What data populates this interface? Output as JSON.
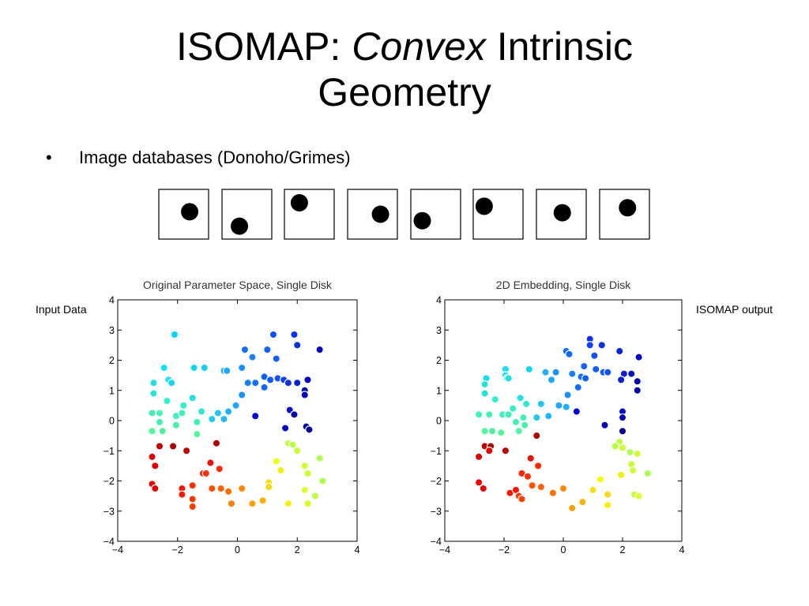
{
  "title": {
    "line1_pre": "ISOMAP: ",
    "line1_em": "Convex",
    "line1_post": " Intrinsic",
    "line2": "Geometry"
  },
  "bullet": {
    "marker": "•",
    "text": "Image databases (Donoho/Grimes)"
  },
  "thumbnails": [
    {
      "disk_x": 0.62,
      "disk_y": 0.45
    },
    {
      "disk_x": 0.35,
      "disk_y": 0.74
    },
    {
      "disk_x": 0.3,
      "disk_y": 0.27
    },
    {
      "disk_x": 0.66,
      "disk_y": 0.5
    },
    {
      "disk_x": 0.23,
      "disk_y": 0.63
    },
    {
      "disk_x": 0.22,
      "disk_y": 0.34
    },
    {
      "disk_x": 0.52,
      "disk_y": 0.47
    },
    {
      "disk_x": 0.56,
      "disk_y": 0.37
    }
  ],
  "labels": {
    "input": "Input Data",
    "output": "ISOMAP output"
  },
  "chart_data": [
    {
      "type": "scatter",
      "title": "Original Parameter Space, Single Disk",
      "xlim": [
        -4,
        4
      ],
      "ylim": [
        -4,
        4
      ],
      "xticks": [
        "−4",
        "−2",
        "0",
        "2",
        "4"
      ],
      "yticks": [
        "−4",
        "−3",
        "−2",
        "−1",
        "0",
        "1",
        "2",
        "3",
        "4"
      ],
      "grid": false,
      "points": [
        {
          "x": -2.1,
          "y": 2.85,
          "color": "#00d8ff"
        },
        {
          "x": 1.2,
          "y": 2.85,
          "color": "#1050ff"
        },
        {
          "x": 1.9,
          "y": 2.85,
          "color": "#0a30ff"
        },
        {
          "x": 2.0,
          "y": 2.5,
          "color": "#0a30e0"
        },
        {
          "x": 2.75,
          "y": 2.35,
          "color": "#0000c8"
        },
        {
          "x": 0.25,
          "y": 2.35,
          "color": "#1070ff"
        },
        {
          "x": 1.0,
          "y": 2.35,
          "color": "#1060ff"
        },
        {
          "x": 0.5,
          "y": 2.1,
          "color": "#1880ff"
        },
        {
          "x": 1.3,
          "y": 2.05,
          "color": "#1060ff"
        },
        {
          "x": -2.45,
          "y": 1.75,
          "color": "#10e0f0"
        },
        {
          "x": -1.45,
          "y": 1.75,
          "color": "#10d8f0"
        },
        {
          "x": -1.1,
          "y": 1.75,
          "color": "#10d0f0"
        },
        {
          "x": -0.45,
          "y": 1.65,
          "color": "#20b0ff"
        },
        {
          "x": -0.35,
          "y": 1.65,
          "color": "#20a8ff"
        },
        {
          "x": 0.15,
          "y": 1.75,
          "color": "#1890ff"
        },
        {
          "x": -2.3,
          "y": 1.35,
          "color": "#10e0f0"
        },
        {
          "x": -2.2,
          "y": 1.25,
          "color": "#10d8f0"
        },
        {
          "x": -2.8,
          "y": 1.25,
          "color": "#20e0e0"
        },
        {
          "x": 0.9,
          "y": 1.45,
          "color": "#1060ff"
        },
        {
          "x": 1.1,
          "y": 1.35,
          "color": "#1058ff"
        },
        {
          "x": 1.35,
          "y": 1.4,
          "color": "#1050ff"
        },
        {
          "x": 1.55,
          "y": 1.35,
          "color": "#1040ff"
        },
        {
          "x": 1.7,
          "y": 1.25,
          "color": "#0a30e0"
        },
        {
          "x": 2.0,
          "y": 1.25,
          "color": "#0a20d0"
        },
        {
          "x": 2.35,
          "y": 1.35,
          "color": "#0000c0"
        },
        {
          "x": 0.6,
          "y": 1.25,
          "color": "#1070ff"
        },
        {
          "x": 0.9,
          "y": 1.1,
          "color": "#1068ff"
        },
        {
          "x": 0.35,
          "y": 1.25,
          "color": "#1080ff"
        },
        {
          "x": 2.25,
          "y": 1.0,
          "color": "#0000a8"
        },
        {
          "x": 2.25,
          "y": 0.85,
          "color": "#0000b8"
        },
        {
          "x": 0.15,
          "y": 0.85,
          "color": "#1890ff"
        },
        {
          "x": -2.8,
          "y": 0.9,
          "color": "#20e8d8"
        },
        {
          "x": -2.35,
          "y": 0.65,
          "color": "#30f0d0"
        },
        {
          "x": -1.5,
          "y": 0.75,
          "color": "#20e0e0"
        },
        {
          "x": -1.8,
          "y": 0.5,
          "color": "#30f0c8"
        },
        {
          "x": -0.05,
          "y": 0.5,
          "color": "#20a8ff"
        },
        {
          "x": -0.3,
          "y": 0.3,
          "color": "#20b0ff"
        },
        {
          "x": -1.2,
          "y": 0.3,
          "color": "#30e8d0"
        },
        {
          "x": -0.65,
          "y": 0.25,
          "color": "#20c8f0"
        },
        {
          "x": -2.85,
          "y": 0.25,
          "color": "#40f0b0"
        },
        {
          "x": -2.6,
          "y": 0.25,
          "color": "#40f8b0"
        },
        {
          "x": -2.05,
          "y": 0.15,
          "color": "#40f0c0"
        },
        {
          "x": -1.85,
          "y": 0.25,
          "color": "#40f0b8"
        },
        {
          "x": -0.85,
          "y": 0.05,
          "color": "#20c8f0"
        },
        {
          "x": -0.45,
          "y": 0.05,
          "color": "#20b8ff"
        },
        {
          "x": 0.6,
          "y": 0.15,
          "color": "#0000e0"
        },
        {
          "x": 1.75,
          "y": 0.35,
          "color": "#0a10c8"
        },
        {
          "x": 1.9,
          "y": 0.2,
          "color": "#0000b0"
        },
        {
          "x": 1.6,
          "y": -0.25,
          "color": "#0000c0"
        },
        {
          "x": 2.3,
          "y": -0.2,
          "color": "#0000a0"
        },
        {
          "x": 2.4,
          "y": -0.3,
          "color": "#000090"
        },
        {
          "x": -2.6,
          "y": -0.05,
          "color": "#40f0b0"
        },
        {
          "x": -2.05,
          "y": -0.15,
          "color": "#48f0a8"
        },
        {
          "x": -2.85,
          "y": -0.35,
          "color": "#50f8a0"
        },
        {
          "x": -2.5,
          "y": -0.35,
          "color": "#50f0a0"
        },
        {
          "x": -1.35,
          "y": -0.05,
          "color": "#40f0b8"
        },
        {
          "x": -1.35,
          "y": -0.45,
          "color": "#50f8a0"
        },
        {
          "x": 1.7,
          "y": -0.75,
          "color": "#c0ff40"
        },
        {
          "x": 1.85,
          "y": -0.8,
          "color": "#b8ff40"
        },
        {
          "x": 2.0,
          "y": -1.0,
          "color": "#c8ff38"
        },
        {
          "x": 2.75,
          "y": -1.25,
          "color": "#b0ff50"
        },
        {
          "x": 1.3,
          "y": -1.35,
          "color": "#f0ff10"
        },
        {
          "x": 2.25,
          "y": -1.5,
          "color": "#d0ff30"
        },
        {
          "x": 1.45,
          "y": -1.65,
          "color": "#f0f010"
        },
        {
          "x": 2.35,
          "y": -1.75,
          "color": "#c8ff30"
        },
        {
          "x": 1.05,
          "y": -2.05,
          "color": "#f8e010"
        },
        {
          "x": 1.05,
          "y": -2.2,
          "color": "#f8d810"
        },
        {
          "x": 2.85,
          "y": -2.0,
          "color": "#b0ff50"
        },
        {
          "x": 2.25,
          "y": -2.3,
          "color": "#d8ff30"
        },
        {
          "x": 2.6,
          "y": -2.5,
          "color": "#c0ff40"
        },
        {
          "x": 1.7,
          "y": -2.75,
          "color": "#f8f008"
        },
        {
          "x": 2.35,
          "y": -2.75,
          "color": "#d8ff20"
        },
        {
          "x": 0.5,
          "y": -2.75,
          "color": "#ffa000"
        },
        {
          "x": 0.85,
          "y": -2.65,
          "color": "#ffb000"
        },
        {
          "x": -2.6,
          "y": -0.85,
          "color": "#c00000"
        },
        {
          "x": -2.15,
          "y": -0.85,
          "color": "#b00000"
        },
        {
          "x": -1.7,
          "y": -1.0,
          "color": "#c00000"
        },
        {
          "x": -0.7,
          "y": -0.75,
          "color": "#b00000"
        },
        {
          "x": -2.85,
          "y": -1.2,
          "color": "#e00000"
        },
        {
          "x": -2.75,
          "y": -1.5,
          "color": "#e80000"
        },
        {
          "x": -0.9,
          "y": -1.4,
          "color": "#f01000"
        },
        {
          "x": -0.6,
          "y": -1.6,
          "color": "#ff2800"
        },
        {
          "x": -1.15,
          "y": -1.75,
          "color": "#ff2000"
        },
        {
          "x": -1.05,
          "y": -1.75,
          "color": "#ff3000"
        },
        {
          "x": -2.85,
          "y": -2.1,
          "color": "#f00000"
        },
        {
          "x": -2.75,
          "y": -2.25,
          "color": "#e80000"
        },
        {
          "x": -1.85,
          "y": -2.25,
          "color": "#ff1000"
        },
        {
          "x": -1.85,
          "y": -2.45,
          "color": "#ff1800"
        },
        {
          "x": -0.85,
          "y": -2.25,
          "color": "#ff5000"
        },
        {
          "x": -0.55,
          "y": -2.25,
          "color": "#ff6000"
        },
        {
          "x": -0.3,
          "y": -2.35,
          "color": "#ff7000"
        },
        {
          "x": 0.15,
          "y": -2.25,
          "color": "#ff8800"
        },
        {
          "x": -1.5,
          "y": -2.6,
          "color": "#ff3800"
        },
        {
          "x": -1.5,
          "y": -2.85,
          "color": "#ff4000"
        },
        {
          "x": -1.5,
          "y": -2.15,
          "color": "#ff3000"
        },
        {
          "x": -0.2,
          "y": -2.75,
          "color": "#ff8000"
        }
      ]
    },
    {
      "type": "scatter",
      "title": "2D Embedding, Single Disk",
      "xlim": [
        -4,
        4
      ],
      "ylim": [
        -4,
        4
      ],
      "xticks": [
        "−4",
        "−2",
        "0",
        "2",
        "4"
      ],
      "yticks": [
        "−4",
        "−3",
        "−2",
        "−1",
        "0",
        "1",
        "2",
        "3",
        "4"
      ],
      "grid": false,
      "points": [
        {
          "x": 0.9,
          "y": 2.7,
          "color": "#0a30ff"
        },
        {
          "x": 0.9,
          "y": 2.5,
          "color": "#1040ff"
        },
        {
          "x": 1.3,
          "y": 2.5,
          "color": "#0a30e8"
        },
        {
          "x": 1.9,
          "y": 2.3,
          "color": "#0a20e0"
        },
        {
          "x": 0.1,
          "y": 2.3,
          "color": "#1070ff"
        },
        {
          "x": 0.2,
          "y": 2.2,
          "color": "#1068ff"
        },
        {
          "x": 1.05,
          "y": 2.15,
          "color": "#1050ff"
        },
        {
          "x": 2.55,
          "y": 2.1,
          "color": "#0000c8"
        },
        {
          "x": 0.7,
          "y": 1.8,
          "color": "#1860ff"
        },
        {
          "x": 1.1,
          "y": 1.7,
          "color": "#1060ff"
        },
        {
          "x": 1.35,
          "y": 1.6,
          "color": "#1058ff"
        },
        {
          "x": 1.5,
          "y": 1.6,
          "color": "#1050ff"
        },
        {
          "x": 2.05,
          "y": 1.55,
          "color": "#0a20d0"
        },
        {
          "x": 2.3,
          "y": 1.55,
          "color": "#0010c0"
        },
        {
          "x": -1.95,
          "y": 1.7,
          "color": "#10e0f0"
        },
        {
          "x": -1.15,
          "y": 1.7,
          "color": "#10d8f0"
        },
        {
          "x": -1.95,
          "y": 1.5,
          "color": "#10e0f0"
        },
        {
          "x": -0.6,
          "y": 1.6,
          "color": "#20b0ff"
        },
        {
          "x": -0.25,
          "y": 1.6,
          "color": "#1890ff"
        },
        {
          "x": 0.3,
          "y": 1.55,
          "color": "#1880ff"
        },
        {
          "x": -2.6,
          "y": 1.4,
          "color": "#10e0f0"
        },
        {
          "x": -1.9,
          "y": 1.4,
          "color": "#10d8f0"
        },
        {
          "x": -1.85,
          "y": 1.4,
          "color": "#20e0e0"
        },
        {
          "x": -0.4,
          "y": 1.35,
          "color": "#20a8ff"
        },
        {
          "x": 0.6,
          "y": 1.45,
          "color": "#1070ff"
        },
        {
          "x": 0.75,
          "y": 1.4,
          "color": "#1060ff"
        },
        {
          "x": 1.95,
          "y": 1.35,
          "color": "#0a20d0"
        },
        {
          "x": 2.5,
          "y": 1.3,
          "color": "#0000b0"
        },
        {
          "x": -2.65,
          "y": 1.2,
          "color": "#20e8d8"
        },
        {
          "x": 0.5,
          "y": 1.1,
          "color": "#1070ff"
        },
        {
          "x": 2.5,
          "y": 1.0,
          "color": "#0000a8"
        },
        {
          "x": -2.65,
          "y": 0.9,
          "color": "#20e8d8"
        },
        {
          "x": -1.45,
          "y": 0.75,
          "color": "#20e0e0"
        },
        {
          "x": -2.3,
          "y": 0.7,
          "color": "#30f0d0"
        },
        {
          "x": 0.15,
          "y": 0.85,
          "color": "#1890ff"
        },
        {
          "x": -1.25,
          "y": 0.55,
          "color": "#30e8d0"
        },
        {
          "x": -0.75,
          "y": 0.55,
          "color": "#20c8f0"
        },
        {
          "x": -1.7,
          "y": 0.4,
          "color": "#30f0c8"
        },
        {
          "x": -0.15,
          "y": 0.5,
          "color": "#20a8ff"
        },
        {
          "x": 0.1,
          "y": 0.45,
          "color": "#20b0ff"
        },
        {
          "x": -2.85,
          "y": 0.2,
          "color": "#40f0b0"
        },
        {
          "x": -2.5,
          "y": 0.2,
          "color": "#40f8b0"
        },
        {
          "x": -2.05,
          "y": 0.2,
          "color": "#40f0c0"
        },
        {
          "x": -1.85,
          "y": 0.2,
          "color": "#40f0b8"
        },
        {
          "x": -1.35,
          "y": 0.1,
          "color": "#40f0b8"
        },
        {
          "x": -0.9,
          "y": 0.1,
          "color": "#20c8f0"
        },
        {
          "x": -0.5,
          "y": 0.15,
          "color": "#20b8ff"
        },
        {
          "x": 0.45,
          "y": 0.3,
          "color": "#0000e0"
        },
        {
          "x": 2.0,
          "y": 0.3,
          "color": "#0a10c8"
        },
        {
          "x": 2.0,
          "y": 0.1,
          "color": "#0000b0"
        },
        {
          "x": -1.6,
          "y": -0.05,
          "color": "#40f0b0"
        },
        {
          "x": -1.3,
          "y": -0.15,
          "color": "#48f0a8"
        },
        {
          "x": -2.65,
          "y": -0.35,
          "color": "#50f8a0"
        },
        {
          "x": -2.4,
          "y": -0.35,
          "color": "#50f0a0"
        },
        {
          "x": -2.1,
          "y": -0.4,
          "color": "#50f8a0"
        },
        {
          "x": -1.5,
          "y": -0.35,
          "color": "#50f8a0"
        },
        {
          "x": 1.4,
          "y": -0.15,
          "color": "#0000c0"
        },
        {
          "x": 2.0,
          "y": -0.35,
          "color": "#000090"
        },
        {
          "x": -0.9,
          "y": -0.5,
          "color": "#b00000"
        },
        {
          "x": 1.9,
          "y": -0.7,
          "color": "#c0ff40"
        },
        {
          "x": 1.75,
          "y": -0.85,
          "color": "#b8ff40"
        },
        {
          "x": 2.0,
          "y": -0.9,
          "color": "#c8ff38"
        },
        {
          "x": 2.25,
          "y": -1.05,
          "color": "#b0ff50"
        },
        {
          "x": 2.5,
          "y": -1.1,
          "color": "#d0ff30"
        },
        {
          "x": -2.65,
          "y": -0.85,
          "color": "#c00000"
        },
        {
          "x": -2.45,
          "y": -0.85,
          "color": "#b00000"
        },
        {
          "x": -2.85,
          "y": -1.2,
          "color": "#e00000"
        },
        {
          "x": -2.5,
          "y": -1.0,
          "color": "#e80000"
        },
        {
          "x": -1.95,
          "y": -1.0,
          "color": "#c00000"
        },
        {
          "x": -1.1,
          "y": -1.25,
          "color": "#f01000"
        },
        {
          "x": -0.85,
          "y": -1.5,
          "color": "#ff2800"
        },
        {
          "x": 2.3,
          "y": -1.45,
          "color": "#c8ff30"
        },
        {
          "x": 2.35,
          "y": -1.65,
          "color": "#d0ff30"
        },
        {
          "x": 2.85,
          "y": -1.75,
          "color": "#b0ff50"
        },
        {
          "x": 1.95,
          "y": -1.8,
          "color": "#f0f010"
        },
        {
          "x": -1.4,
          "y": -1.75,
          "color": "#ff2000"
        },
        {
          "x": -1.2,
          "y": -1.85,
          "color": "#ff3000"
        },
        {
          "x": 1.25,
          "y": -1.95,
          "color": "#f0ff10"
        },
        {
          "x": -2.85,
          "y": -2.05,
          "color": "#f00000"
        },
        {
          "x": -2.7,
          "y": -2.25,
          "color": "#e80000"
        },
        {
          "x": -1.05,
          "y": -2.15,
          "color": "#ff5000"
        },
        {
          "x": -0.75,
          "y": -2.2,
          "color": "#ff6000"
        },
        {
          "x": -0.35,
          "y": -2.4,
          "color": "#ff7000"
        },
        {
          "x": 0.0,
          "y": -2.25,
          "color": "#ff8800"
        },
        {
          "x": 1.0,
          "y": -2.3,
          "color": "#f8e010"
        },
        {
          "x": 2.4,
          "y": -2.45,
          "color": "#c0ff40"
        },
        {
          "x": 2.55,
          "y": -2.5,
          "color": "#d8ff30"
        },
        {
          "x": 1.5,
          "y": -2.45,
          "color": "#f8d810"
        },
        {
          "x": -1.8,
          "y": -2.4,
          "color": "#ff1800"
        },
        {
          "x": -1.6,
          "y": -2.3,
          "color": "#ff1000"
        },
        {
          "x": -1.5,
          "y": -2.5,
          "color": "#ff3800"
        },
        {
          "x": -1.4,
          "y": -2.6,
          "color": "#ff4000"
        },
        {
          "x": 0.65,
          "y": -2.7,
          "color": "#ffb000"
        },
        {
          "x": 1.5,
          "y": -2.8,
          "color": "#f8f008"
        },
        {
          "x": 0.3,
          "y": -2.9,
          "color": "#ffa000"
        }
      ]
    }
  ]
}
